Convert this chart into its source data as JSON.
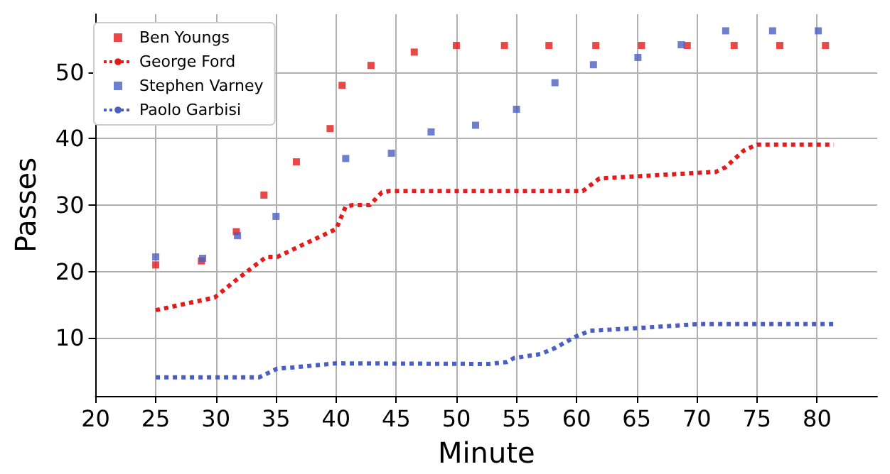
{
  "chart_data": {
    "type": "scatter",
    "xlabel": "Minute",
    "ylabel": "Passes",
    "xlim": [
      20,
      85
    ],
    "xticks": [
      20,
      25,
      30,
      35,
      40,
      45,
      50,
      55,
      60,
      65,
      70,
      75,
      80
    ],
    "ylim": [
      1.3,
      58.7
    ],
    "yticks": [
      10,
      20,
      30,
      40,
      50
    ],
    "grid": true,
    "legend": "top left",
    "line_style": "dotted",
    "series": [
      {
        "name": "Ben Youngs",
        "marker": "square",
        "color": "#e41a1c",
        "x": [
          25,
          28.8,
          31.7,
          34,
          36.7,
          39.5,
          40.5,
          42.9,
          46.5,
          50,
          54,
          57.7,
          61.6,
          65.4,
          69.2,
          73.1,
          76.9,
          80.7
        ],
        "values": [
          21,
          21.6,
          26,
          31.5,
          36.5,
          41.5,
          48,
          51,
          53,
          54,
          54,
          54,
          54,
          54,
          54,
          54,
          54,
          54
        ]
      },
      {
        "name": "George Ford",
        "type": "line",
        "marker": "none",
        "color": "#e41a1c",
        "x": [
          25,
          29.9,
          31.8,
          33.6,
          34.2,
          35.1,
          40,
          40.8,
          41.4,
          42.8,
          43.8,
          44.4,
          60.5,
          61.9,
          71.6,
          72.4,
          73.9,
          75,
          81.4
        ],
        "values": [
          14.2,
          16.1,
          18.9,
          21.4,
          22.2,
          22.2,
          26.4,
          29.8,
          30,
          30,
          31.9,
          32.1,
          32.1,
          34,
          35,
          35.7,
          38.2,
          39.1,
          39.1
        ]
      },
      {
        "name": "Stephen Varney",
        "marker": "square",
        "color": "#4a5fc1",
        "x": [
          25,
          28.9,
          31.8,
          35,
          40.8,
          44.6,
          47.9,
          51.6,
          55,
          58.2,
          61.4,
          65.1,
          68.7,
          72.4,
          76.3,
          80.1
        ],
        "values": [
          22.2,
          22,
          25.4,
          28.3,
          37,
          37.8,
          41,
          42,
          44.4,
          48.4,
          51.1,
          52.2,
          54.1,
          56.2,
          56.2,
          56.2
        ]
      },
      {
        "name": "Paolo Garbisi",
        "type": "line",
        "marker": "none",
        "color": "#4a5fc1",
        "x": [
          25,
          33.6,
          35.1,
          36.5,
          40,
          52.7,
          54.2,
          54.8,
          57,
          58.2,
          59.9,
          61.1,
          65.1,
          70.1,
          81.4
        ],
        "values": [
          4.1,
          4.1,
          5.4,
          5.6,
          6.2,
          6.1,
          6.4,
          7,
          7.6,
          8.5,
          10.2,
          11.1,
          11.5,
          12.1,
          12.1
        ]
      }
    ]
  }
}
